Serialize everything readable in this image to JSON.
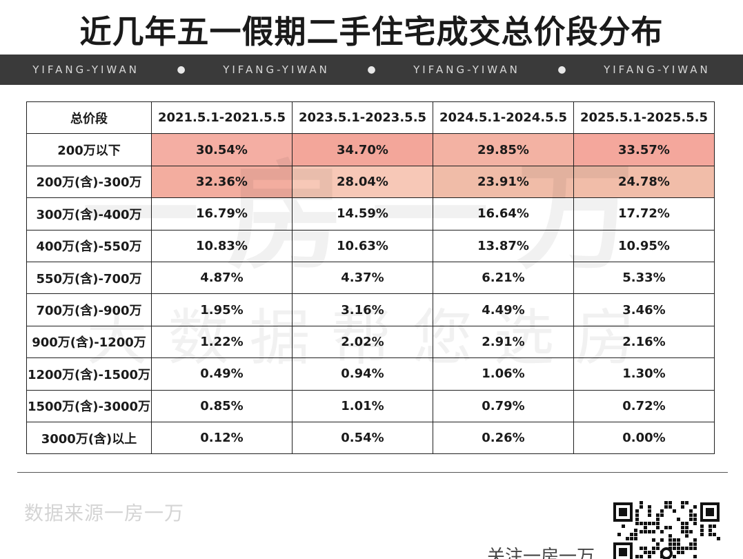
{
  "title": "近几年五一假期二手住宅成交总价段分布",
  "band": {
    "repeat_text": "YIFANG-YIWAN",
    "separator": "●"
  },
  "watermark": {
    "line1": "一房一万",
    "line2": "大数据帮您选房"
  },
  "table": {
    "headers": [
      "总价段",
      "2021.5.1-2021.5.5",
      "2023.5.1-2023.5.5",
      "2024.5.1-2024.5.5",
      "2025.5.1-2025.5.5"
    ],
    "rows": [
      {
        "label": "200万以下",
        "values": [
          "30.54%",
          "34.70%",
          "29.85%",
          "33.57%"
        ]
      },
      {
        "label": "200万(含)-300万",
        "values": [
          "32.36%",
          "28.04%",
          "23.91%",
          "24.78%"
        ]
      },
      {
        "label": "300万(含)-400万",
        "values": [
          "16.79%",
          "14.59%",
          "16.64%",
          "17.72%"
        ]
      },
      {
        "label": "400万(含)-550万",
        "values": [
          "10.83%",
          "10.63%",
          "13.87%",
          "10.95%"
        ]
      },
      {
        "label": "550万(含)-700万",
        "values": [
          "4.87%",
          "4.37%",
          "6.21%",
          "5.33%"
        ]
      },
      {
        "label": "700万(含)-900万",
        "values": [
          "1.95%",
          "3.16%",
          "4.49%",
          "3.46%"
        ]
      },
      {
        "label": "900万(含)-1200万",
        "values": [
          "1.22%",
          "2.02%",
          "2.91%",
          "2.16%"
        ]
      },
      {
        "label": "1200万(含)-1500万",
        "values": [
          "0.49%",
          "0.94%",
          "1.06%",
          "1.30%"
        ]
      },
      {
        "label": "1500万(含)-3000万",
        "values": [
          "0.85%",
          "1.01%",
          "0.79%",
          "0.72%"
        ]
      },
      {
        "label": "3000万(含)以上",
        "values": [
          "0.12%",
          "0.54%",
          "0.26%",
          "0.00%"
        ]
      }
    ],
    "highlight_colors": [
      [
        "#f4aea3",
        "#f3a69a",
        "#f3b2a3",
        "#f4a79c"
      ],
      [
        "#f3ad9f",
        "#f7c8b7",
        "#f0bca8",
        "#f1bda9"
      ]
    ]
  },
  "footer": {
    "source": "数据来源一房一万",
    "follow": "关注一房一万"
  },
  "qr_icon": "qr-code-icon"
}
